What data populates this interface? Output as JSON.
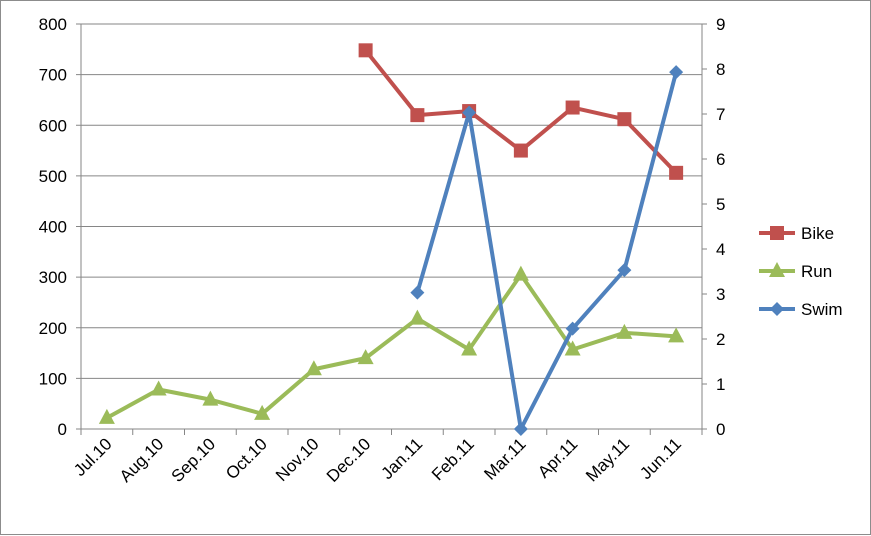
{
  "chart_data": {
    "type": "line",
    "title": "",
    "xlabel": "",
    "ylabel": "",
    "categories": [
      "Jul.10",
      "Aug.10",
      "Sep.10",
      "Oct.10",
      "Nov.10",
      "Dec.10",
      "Jan.11",
      "Feb.11",
      "Mar.11",
      "Apr.11",
      "May.11",
      "Jun.11"
    ],
    "ylim": [
      0,
      800
    ],
    "y_ticks": [
      0,
      100,
      200,
      300,
      400,
      500,
      600,
      700,
      800
    ],
    "y2lim": [
      0,
      9
    ],
    "y2_ticks": [
      0,
      1,
      2,
      3,
      4,
      5,
      6,
      7,
      8,
      9
    ],
    "grid": true,
    "legend_position": "right",
    "series": [
      {
        "name": "Bike",
        "axis": "left",
        "color": "#c0504d",
        "marker": "square",
        "values": [
          null,
          null,
          null,
          null,
          null,
          748,
          620,
          628,
          550,
          635,
          612,
          506
        ]
      },
      {
        "name": "Run",
        "axis": "left",
        "color": "#9bbb59",
        "marker": "triangle",
        "values": [
          22,
          78,
          58,
          30,
          118,
          140,
          218,
          157,
          305,
          157,
          190,
          183
        ]
      },
      {
        "name": "Swim",
        "axis": "right",
        "color": "#4f81bd",
        "marker": "diamond",
        "values": [
          null,
          null,
          null,
          null,
          null,
          null,
          3.03,
          7.03,
          0,
          2.23,
          3.53,
          7.93
        ]
      }
    ]
  }
}
